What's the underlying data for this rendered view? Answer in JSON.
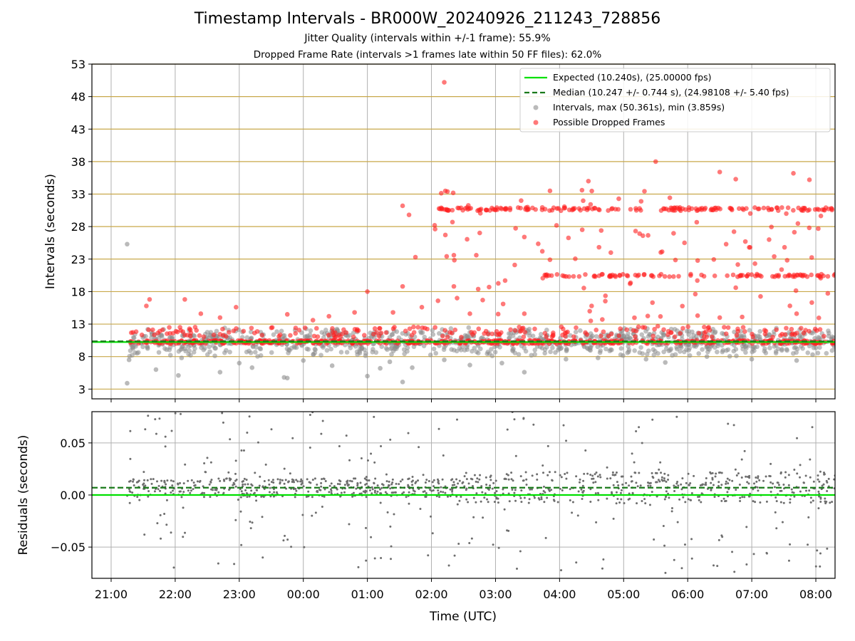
{
  "titles": {
    "main": "Timestamp Intervals - BR000W_20240926_211243_728856",
    "sub1": "Jitter Quality (intervals within +/-1 frame): 55.9%",
    "sub2": "Dropped Frame Rate (intervals >1 frames late within 50 FF files): 62.0%"
  },
  "colors": {
    "expected": "#00e000",
    "median": "#1a7a1a",
    "intervals": "#8c8c8c",
    "dropped": "#ff2020",
    "gridline": "#c8a84a",
    "residual": "#6e6e6e"
  },
  "chart_data": [
    {
      "type": "scatter",
      "panel": "intervals",
      "ylabel": "Intervals (seconds)",
      "ylim": [
        1.5,
        53
      ],
      "yticks": [
        3,
        8,
        13,
        18,
        23,
        28,
        33,
        38,
        43,
        48,
        53
      ],
      "xlim_hours": [
        -3.3,
        8.3
      ],
      "expected_line": 10.24,
      "median_line": 10.247,
      "legend": {
        "placement": "top-right",
        "expected": "Expected (10.240s), (25.00000 fps)",
        "median": "Median (10.247 +/- 0.744 s), (24.98108 +/- 5.40 fps)",
        "intervals": "Intervals, max (50.361s), min (3.859s)",
        "dropped": "Possible Dropped Frames"
      },
      "series": [
        {
          "name": "Intervals, max (50.361s), min (3.859s)",
          "color": "gray",
          "points": [
            [
              -2.75,
              25.3
            ],
            [
              -2.75,
              3.9
            ],
            [
              -2.72,
              7.5
            ],
            [
              -2.3,
              6
            ],
            [
              -1.95,
              5.1
            ],
            [
              -1.3,
              5.6
            ],
            [
              -1,
              7
            ],
            [
              -0.8,
              6.3
            ],
            [
              -0.3,
              4.8
            ],
            [
              -0.25,
              4.7
            ],
            [
              0.0,
              7.4
            ],
            [
              1.0,
              5
            ],
            [
              1.2,
              6.2
            ],
            [
              1.55,
              4.1
            ],
            [
              1.7,
              6.3
            ],
            [
              2.6,
              6.7
            ],
            [
              3.1,
              7
            ],
            [
              3.45,
              5.6
            ],
            [
              4.1,
              7.6
            ],
            [
              5.35,
              7.6
            ],
            [
              5.65,
              7.1
            ],
            [
              6.3,
              8
            ],
            [
              7.0,
              7.6
            ],
            [
              7.7,
              7.4
            ],
            [
              7.95,
              8.3
            ],
            [
              -1.9,
              7.8
            ],
            [
              0.45,
              6.6
            ],
            [
              1.35,
              7.2
            ],
            [
              2.2,
              7.5
            ],
            [
              4.6,
              7.8
            ]
          ]
        },
        {
          "name": "Possible Dropped Frames",
          "color": "red",
          "points": [
            [
              2.2,
              50.2
            ],
            [
              2.25,
              33.4
            ],
            [
              5.5,
              38
            ],
            [
              6.5,
              36.4
            ],
            [
              7.65,
              36.2
            ],
            [
              7.9,
              35.2
            ],
            [
              6.75,
              35.3
            ],
            [
              4.45,
              35
            ],
            [
              3.4,
              32
            ],
            [
              3.5,
              31
            ],
            [
              3.85,
              33.5
            ],
            [
              4.35,
              33.6
            ],
            [
              1.55,
              31.2
            ],
            [
              1.65,
              29.8
            ],
            [
              2.05,
              28.2
            ],
            [
              3.45,
              26.4
            ],
            [
              4.65,
              27.4
            ],
            [
              5.3,
              26.6
            ],
            [
              1.75,
              23.3
            ],
            [
              2.35,
              23.6
            ],
            [
              2.7,
              23.6
            ],
            [
              3.3,
              22.1
            ],
            [
              3.85,
              22.9
            ],
            [
              4.8,
              24
            ],
            [
              5.95,
              25.5
            ],
            [
              6.6,
              25.3
            ],
            [
              6.9,
              25.7
            ],
            [
              7.05,
              22.3
            ],
            [
              7.35,
              23.4
            ],
            [
              1.55,
              18.8
            ],
            [
              1.0,
              18
            ],
            [
              2.35,
              18.8
            ],
            [
              2.4,
              17
            ],
            [
              2.9,
              18.7
            ],
            [
              3.15,
              19.7
            ],
            [
              3.8,
              20.6
            ],
            [
              5.1,
              19.2
            ],
            [
              6.15,
              19.7
            ],
            [
              6.75,
              18.6
            ],
            [
              -2.4,
              16.8
            ],
            [
              -2.45,
              15.8
            ],
            [
              -1.85,
              16.8
            ],
            [
              -1.05,
              15.6
            ],
            [
              -0.25,
              14.5
            ],
            [
              0.4,
              14.2
            ],
            [
              -1.3,
              14
            ],
            [
              0.8,
              14.8
            ],
            [
              1.4,
              14.8
            ],
            [
              1.85,
              15.6
            ],
            [
              2.6,
              14.6
            ],
            [
              2.8,
              16.7
            ],
            [
              3.45,
              14.6
            ],
            [
              4.5,
              15.8
            ],
            [
              5.45,
              16.3
            ],
            [
              6.5,
              14
            ],
            [
              6.85,
              14.1
            ],
            [
              7.7,
              14.6
            ],
            [
              -1.6,
              14.6
            ],
            [
              0.15,
              13.6
            ]
          ]
        },
        {
          "name": "bands",
          "color": "red",
          "bands": [
            {
              "y": 10.24,
              "x0": -2.72,
              "x1": 8.3,
              "spread": 0.25,
              "count": 520
            },
            {
              "y": 30.7,
              "x0": 2.1,
              "x1": 8.3,
              "spread": 0.25,
              "count": 170
            },
            {
              "y": 20.48,
              "x0": 3.75,
              "x1": 8.3,
              "spread": 0.2,
              "count": 95
            },
            {
              "y": 11.6,
              "x0": -2.72,
              "x1": 8.3,
              "spread": 1.6,
              "count": 200
            }
          ]
        }
      ]
    },
    {
      "type": "scatter",
      "panel": "residuals",
      "xlabel": "Time (UTC)",
      "ylabel": "Residuals (seconds)",
      "ylim": [
        -0.08,
        0.08
      ],
      "yticks": [
        0.05,
        0.0,
        -0.05
      ],
      "ytick_labels": [
        "0.05",
        "0.00",
        "−0.05"
      ],
      "xticks_hours": [
        -3,
        -2,
        -1,
        0,
        1,
        2,
        3,
        4,
        5,
        6,
        7,
        8
      ],
      "xtick_labels": [
        "21:00",
        "22:00",
        "23:00",
        "00:00",
        "01:00",
        "02:00",
        "03:00",
        "04:00",
        "05:00",
        "06:00",
        "07:00",
        "08:00"
      ],
      "expected_line": 0.0,
      "median_line": 0.007,
      "series": [
        {
          "name": "Residuals",
          "color": "gray",
          "x_range": [
            -2.75,
            8.3
          ],
          "center": 0.007,
          "count": 1100
        }
      ]
    }
  ]
}
